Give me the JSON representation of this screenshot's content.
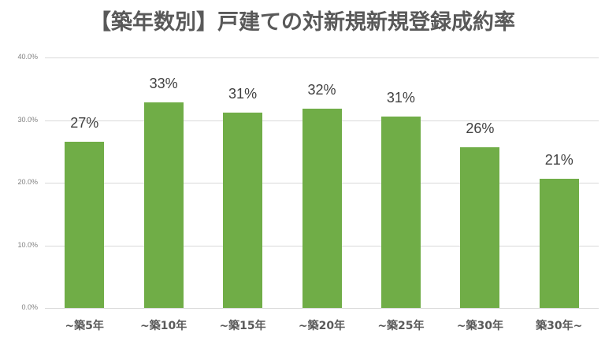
{
  "chart_data": {
    "type": "bar",
    "title": "【築年数別】戸建ての対新規新規登録成約率",
    "categories": [
      "~築5年",
      "~築10年",
      "~築15年",
      "~築20年",
      "~築25年",
      "~築30年",
      "築30年~"
    ],
    "values": [
      26.6,
      32.8,
      31.2,
      31.8,
      30.6,
      25.6,
      20.6
    ],
    "data_labels": [
      "27%",
      "33%",
      "31%",
      "32%",
      "31%",
      "26%",
      "21%"
    ],
    "xlabel": "",
    "ylabel": "",
    "ylim": [
      0,
      40
    ],
    "yticks": [
      "0.0%",
      "10.0%",
      "20.0%",
      "30.0%",
      "40.0%"
    ],
    "grid": true,
    "legend": "none",
    "bar_color": "#70ad47"
  }
}
